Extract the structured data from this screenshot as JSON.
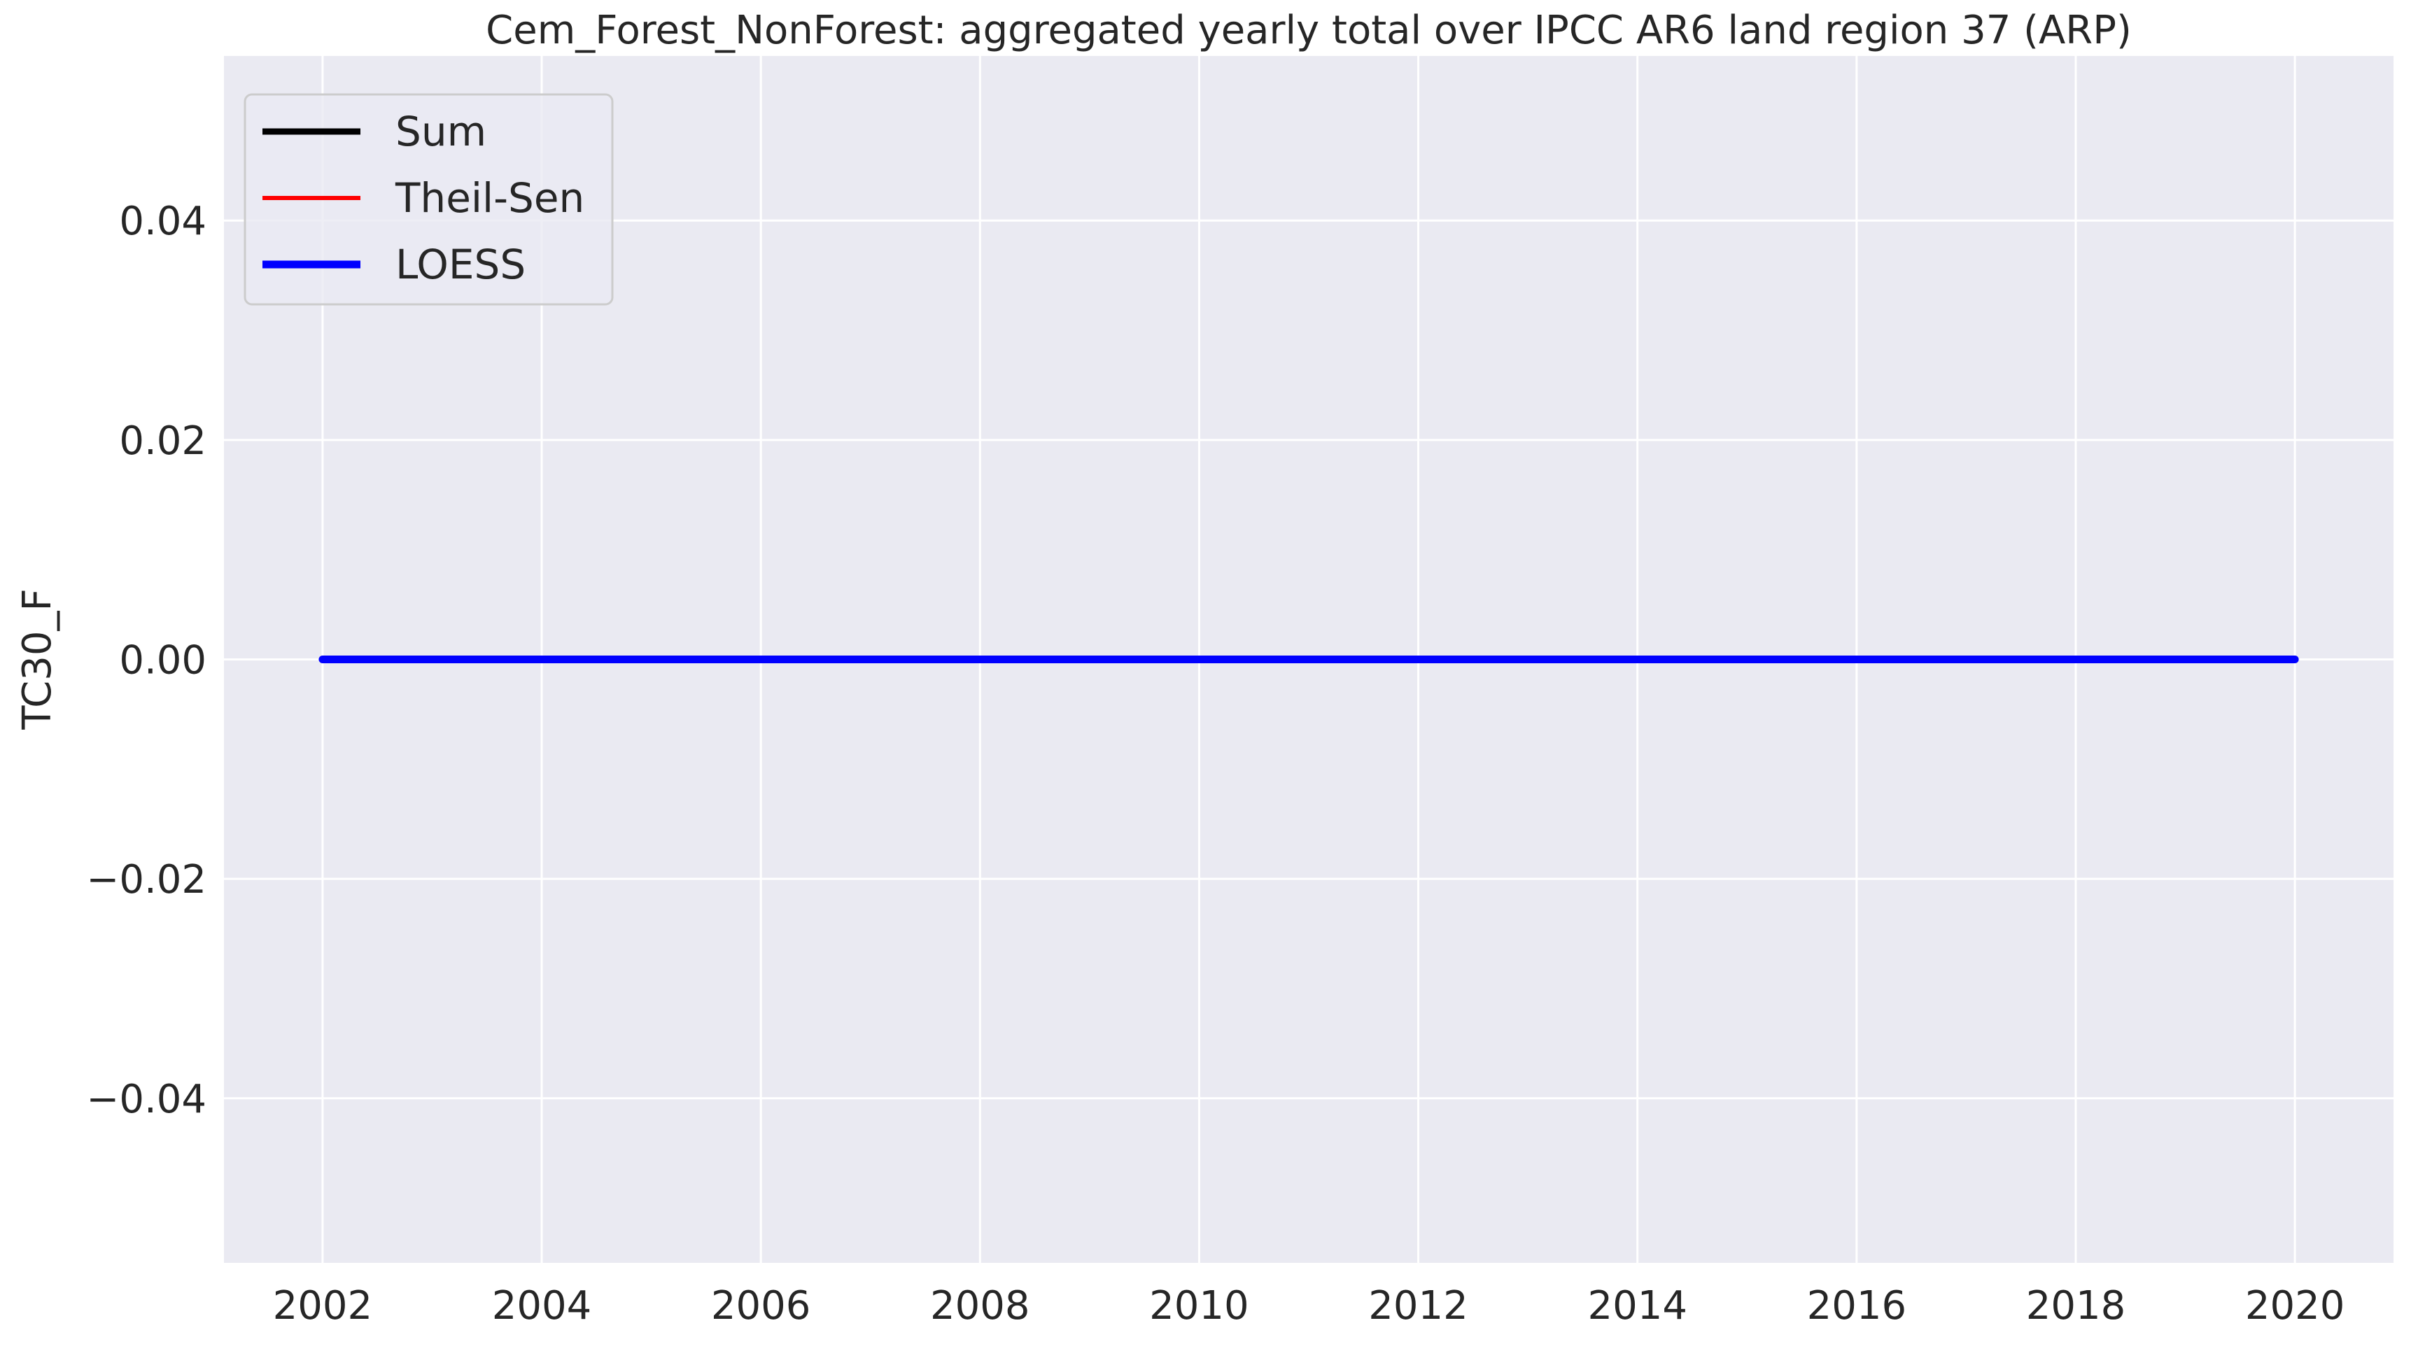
{
  "chart_data": {
    "type": "line",
    "title": "Cem_Forest_NonForest: aggregated yearly total over IPCC AR6 land region 37 (ARP)",
    "xlabel": "",
    "ylabel": "TC30_F",
    "x": [
      2002,
      2003,
      2004,
      2005,
      2006,
      2007,
      2008,
      2009,
      2010,
      2011,
      2012,
      2013,
      2014,
      2015,
      2016,
      2017,
      2018,
      2019,
      2020
    ],
    "series": [
      {
        "name": "Sum",
        "color": "#000000",
        "values": [
          0,
          0,
          0,
          0,
          0,
          0,
          0,
          0,
          0,
          0,
          0,
          0,
          0,
          0,
          0,
          0,
          0,
          0,
          0
        ]
      },
      {
        "name": "Theil-Sen",
        "color": "#ff0000",
        "values": [
          0,
          0,
          0,
          0,
          0,
          0,
          0,
          0,
          0,
          0,
          0,
          0,
          0,
          0,
          0,
          0,
          0,
          0,
          0
        ]
      },
      {
        "name": "LOESS",
        "color": "#0000ff",
        "values": [
          0,
          0,
          0,
          0,
          0,
          0,
          0,
          0,
          0,
          0,
          0,
          0,
          0,
          0,
          0,
          0,
          0,
          0,
          0
        ]
      }
    ],
    "xlim": [
      2001.1,
      2020.9
    ],
    "ylim": [
      -0.055,
      0.055
    ],
    "xticks": [
      2002,
      2004,
      2006,
      2008,
      2010,
      2012,
      2014,
      2016,
      2018,
      2020
    ],
    "xtick_labels": [
      "2002",
      "2004",
      "2006",
      "2008",
      "2010",
      "2012",
      "2014",
      "2016",
      "2018",
      "2020"
    ],
    "yticks": [
      -0.04,
      -0.02,
      0.0,
      0.02,
      0.04
    ],
    "ytick_labels": [
      "−0.04",
      "−0.02",
      "0.00",
      "0.02",
      "0.04"
    ],
    "grid": true,
    "legend_position": "top-left",
    "background_color": "#eaeaf2",
    "grid_color": "#ffffff"
  }
}
